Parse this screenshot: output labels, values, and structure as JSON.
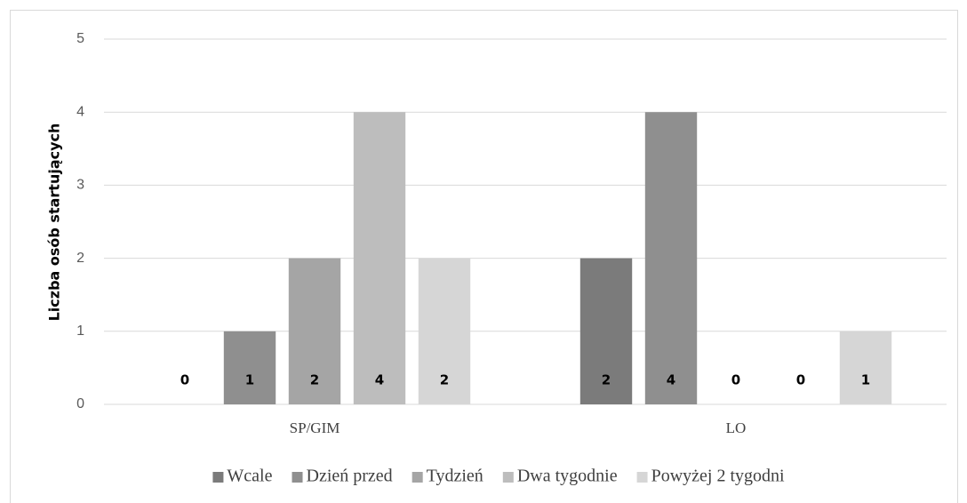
{
  "chart_data": {
    "type": "bar",
    "categories": [
      "SP/GIM",
      "LO"
    ],
    "series": [
      {
        "name": "Wcale",
        "color": "#7b7b7b",
        "values": [
          0,
          2
        ]
      },
      {
        "name": "Dzień przed",
        "color": "#8f8f8f",
        "values": [
          1,
          4
        ]
      },
      {
        "name": "Tydzień",
        "color": "#a5a5a5",
        "values": [
          2,
          0
        ]
      },
      {
        "name": "Dwa tygodnie",
        "color": "#bdbdbd",
        "values": [
          4,
          0
        ]
      },
      {
        "name": "Powyżej 2 tygodni",
        "color": "#d6d6d6",
        "values": [
          2,
          1
        ]
      }
    ],
    "y_label": "Liczba osób startujących",
    "ylim": [
      0,
      5
    ],
    "yticks": [
      0,
      1,
      2,
      3,
      4,
      5
    ],
    "grid": true,
    "legend": "bottom"
  }
}
